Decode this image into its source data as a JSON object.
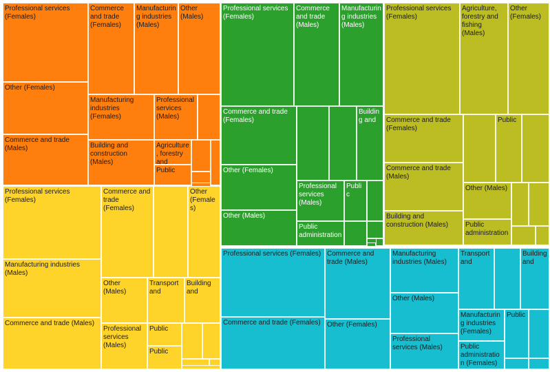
{
  "chart_data": {
    "type": "treemap",
    "groups": [
      {
        "color": "#ff7f0e",
        "text_color": "#1a1a1a",
        "tiles": [
          {
            "label": "Professional services (Females)"
          },
          {
            "label": "Commerce and trade (Females)"
          },
          {
            "label": "Manufacturing industries (Males)"
          },
          {
            "label": "Other (Males)"
          },
          {
            "label": "Other (Females)"
          },
          {
            "label": "Manufacturing industries (Females)"
          },
          {
            "label": "Professional services (Males)"
          },
          {
            "label": ""
          },
          {
            "label": "Commerce and trade (Males)"
          },
          {
            "label": "Building and construction (Males)"
          },
          {
            "label": "Agriculture, forestry and"
          },
          {
            "label": ""
          },
          {
            "label": ""
          },
          {
            "label": "Public"
          },
          {
            "label": ""
          },
          {
            "label": ""
          }
        ]
      },
      {
        "color": "#2ca02c",
        "text_color": "#ffffff",
        "tiles": [
          {
            "label": "Professional services (Females)"
          },
          {
            "label": "Commerce and trade (Males)"
          },
          {
            "label": "Manufacturing industries (Males)"
          },
          {
            "label": "Commerce and trade (Females)"
          },
          {
            "label": ""
          },
          {
            "label": ""
          },
          {
            "label": "Building and"
          },
          {
            "label": "Other (Females)"
          },
          {
            "label": "Professional services (Males)"
          },
          {
            "label": "Public"
          },
          {
            "label": ""
          },
          {
            "label": "Other (Males)"
          },
          {
            "label": ""
          },
          {
            "label": ""
          },
          {
            "label": "Public administration"
          },
          {
            "label": ""
          },
          {
            "label": ""
          },
          {
            "label": ""
          }
        ]
      },
      {
        "color": "#bcbd22",
        "text_color": "#1a1a1a",
        "tiles": [
          {
            "label": "Professional services (Females)"
          },
          {
            "label": "Agriculture, forestry and fishing (Males)"
          },
          {
            "label": "Other (Females)"
          },
          {
            "label": "Commerce and trade (Females)"
          },
          {
            "label": ""
          },
          {
            "label": "Public"
          },
          {
            "label": ""
          },
          {
            "label": "Commerce and trade (Males)"
          },
          {
            "label": "Other (Males)"
          },
          {
            "label": ""
          },
          {
            "label": ""
          },
          {
            "label": "Building and construction (Males)"
          },
          {
            "label": "Public administration"
          },
          {
            "label": ""
          },
          {
            "label": ""
          }
        ]
      },
      {
        "color": "#ffd42a",
        "text_color": "#1a1a1a",
        "tiles": [
          {
            "label": "Professional services (Females)"
          },
          {
            "label": "Commerce and trade (Females)"
          },
          {
            "label": ""
          },
          {
            "label": "Other (Females)"
          },
          {
            "label": "Manufacturing industries (Males)"
          },
          {
            "label": "Other (Males)"
          },
          {
            "label": "Transport and"
          },
          {
            "label": "Building and"
          },
          {
            "label": "Commerce and trade (Males)"
          },
          {
            "label": "Professional services (Males)"
          },
          {
            "label": "Public"
          },
          {
            "label": ""
          },
          {
            "label": ""
          },
          {
            "label": "Public"
          },
          {
            "label": ""
          },
          {
            "label": ""
          },
          {
            "label": ""
          }
        ]
      },
      {
        "color": "#17becf",
        "text_color": "#1a1a1a",
        "tiles": [
          {
            "label": "Professional services (Females)"
          },
          {
            "label": "Commerce and trade (Males)"
          },
          {
            "label": "Manufacturing industries (Males)"
          },
          {
            "label": "Transport and"
          },
          {
            "label": ""
          },
          {
            "label": "Building and"
          },
          {
            "label": "Other (Males)"
          },
          {
            "label": "Commerce and trade (Females)"
          },
          {
            "label": "Other (Females)"
          },
          {
            "label": "Manufacturing industries (Females)"
          },
          {
            "label": "Public"
          },
          {
            "label": ""
          },
          {
            "label": "Professional services (Males)"
          },
          {
            "label": "Public administration (Females)"
          },
          {
            "label": ""
          },
          {
            "label": ""
          }
        ]
      }
    ]
  }
}
